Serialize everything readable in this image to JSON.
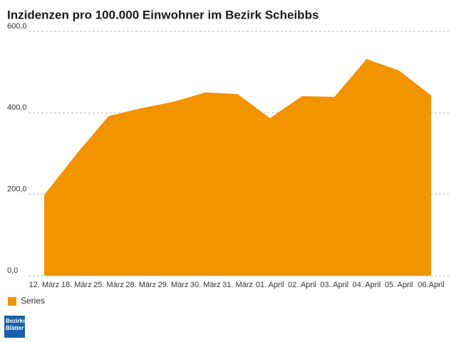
{
  "chart_data": {
    "type": "area",
    "title": "Inzidenzen pro 100.000 Einwohner im Bezirk Scheibbs",
    "categories": [
      "12. März",
      "18. März",
      "25. März",
      "28. März",
      "29. März",
      "30. März",
      "31. März",
      "01. April",
      "02. April",
      "03. April",
      "04. April",
      "05. April",
      "06.April"
    ],
    "series": [
      {
        "name": "Series",
        "color": "#f29400",
        "values": [
          198,
          299,
          392,
          411,
          427,
          450,
          446,
          387,
          441,
          439,
          532,
          504,
          443
        ]
      }
    ],
    "ylim": [
      0,
      600
    ],
    "yticks": [
      {
        "value": 0,
        "label": "0,0"
      },
      {
        "value": 200,
        "label": "200,0"
      },
      {
        "value": 400,
        "label": "400,0"
      },
      {
        "value": 600,
        "label": "600,0"
      }
    ],
    "grid": true,
    "legend": "bottom-left"
  },
  "logo": {
    "lines": [
      "Bezirks",
      "Blätter"
    ]
  }
}
